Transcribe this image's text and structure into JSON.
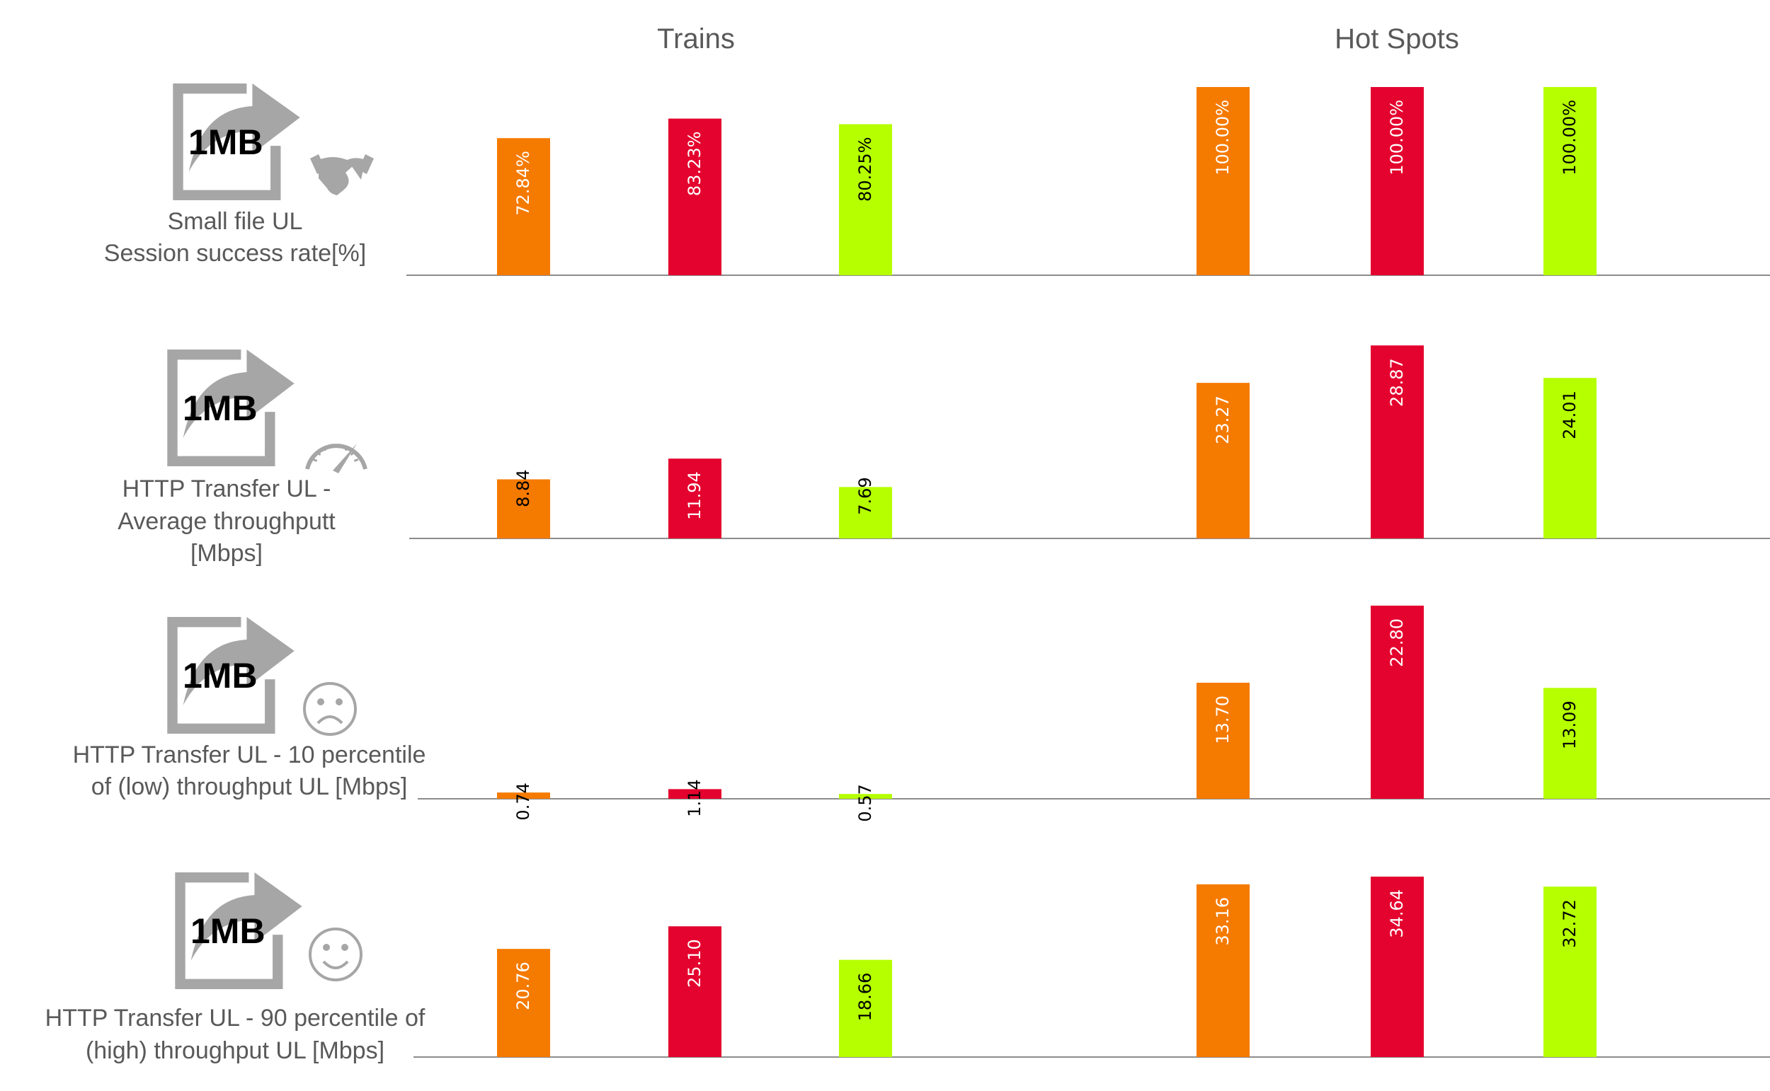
{
  "chart_data": {
    "type": "bar",
    "groups": [
      "Trains",
      "Hot Spots"
    ],
    "series_colors": [
      "#F57A00",
      "#E4032E",
      "#B5FF00"
    ],
    "icon_text": "1MB",
    "panels": [
      {
        "label_lines": [
          "Small file UL",
          "Session success rate[%]"
        ],
        "icon": "handshake-icon",
        "ylim": [
          0,
          100
        ],
        "values": {
          "Trains": [
            72.84,
            83.23,
            80.25
          ],
          "Hot Spots": [
            100.0,
            100.0,
            100.0
          ]
        },
        "labels": {
          "Trains": [
            "72.84%",
            "83.23%",
            "80.25%"
          ],
          "Hot Spots": [
            "100.00%",
            "100.00%",
            "100.00%"
          ]
        }
      },
      {
        "label_lines": [
          "HTTP Transfer UL -",
          "Average throughputt",
          "[Mbps]"
        ],
        "icon": "speedometer-icon",
        "ylim": [
          0,
          29
        ],
        "values": {
          "Trains": [
            8.84,
            11.94,
            7.69
          ],
          "Hot Spots": [
            23.27,
            28.87,
            24.01
          ]
        },
        "labels": {
          "Trains": [
            "8.84",
            "11.94",
            "7.69"
          ],
          "Hot Spots": [
            "23.27",
            "28.87",
            "24.01"
          ]
        }
      },
      {
        "label_lines": [
          "HTTP Transfer UL - 10 percentile",
          "of (low) throughput UL  [Mbps]"
        ],
        "icon": "sad-face-icon",
        "ylim": [
          0,
          22.8
        ],
        "values": {
          "Trains": [
            0.74,
            1.14,
            0.57
          ],
          "Hot Spots": [
            13.7,
            22.8,
            13.09
          ]
        },
        "labels": {
          "Trains": [
            "0.74",
            "1.14",
            "0.57"
          ],
          "Hot Spots": [
            "13.70",
            "22.80",
            "13.09"
          ]
        }
      },
      {
        "label_lines": [
          "HTTP Transfer UL - 90 percentile of",
          "(high) throughput UL [Mbps]"
        ],
        "icon": "smiley-face-icon",
        "ylim": [
          0,
          34.64
        ],
        "values": {
          "Trains": [
            20.76,
            25.1,
            18.66
          ],
          "Hot Spots": [
            33.16,
            34.64,
            32.72
          ]
        },
        "labels": {
          "Trains": [
            "20.76",
            "25.10",
            "18.66"
          ],
          "Hot Spots": [
            "33.16",
            "34.64",
            "32.72"
          ]
        }
      }
    ]
  }
}
